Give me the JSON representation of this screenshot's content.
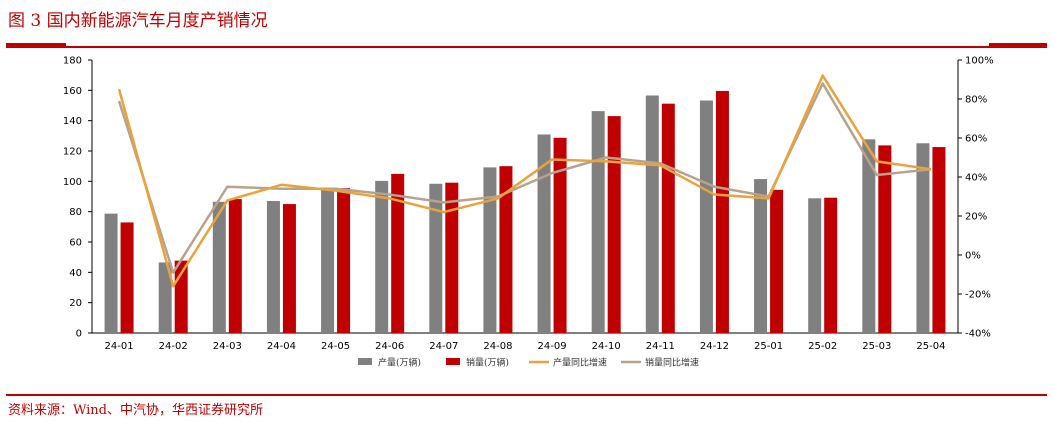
{
  "figure": {
    "title": "图 3  国内新能源汽车月度产销情况",
    "source": "资料来源：Wind、中汽协，华西证券研究所"
  },
  "colors": {
    "production_bar": "#808080",
    "sales_bar": "#c00000",
    "production_yoy_line": "#e8a33c",
    "sales_yoy_line": "#b8a28c",
    "accent": "#c00000"
  },
  "chart_data": {
    "type": "bar",
    "title": "",
    "xlabel": "",
    "ylabel": "",
    "y2label": "",
    "categories": [
      "24-01",
      "24-02",
      "24-03",
      "24-04",
      "24-05",
      "24-06",
      "24-07",
      "24-08",
      "24-09",
      "24-10",
      "24-11",
      "24-12",
      "25-01",
      "25-02",
      "25-03",
      "25-04"
    ],
    "ylim": [
      0,
      180
    ],
    "yticks": [
      0,
      20,
      40,
      60,
      80,
      100,
      120,
      140,
      160,
      180
    ],
    "ytick_labels": [
      "0",
      "20",
      "40",
      "60",
      "80",
      "100",
      "120",
      "140",
      "160",
      "180"
    ],
    "y2lim": [
      -40,
      100
    ],
    "y2ticks": [
      -40,
      -20,
      0,
      20,
      40,
      60,
      80,
      100
    ],
    "y2tick_labels": [
      "-40%",
      "-20%",
      "0%",
      "20%",
      "40%",
      "60%",
      "80%",
      "100%"
    ],
    "grid": false,
    "legend_position": "bottom",
    "series": [
      {
        "name": "产量(万辆)",
        "kind": "bar",
        "axis": "left",
        "color": "#808080",
        "values": [
          78.7,
          46.5,
          86.5,
          87.0,
          94.4,
          100.3,
          98.4,
          109.2,
          130.9,
          146.3,
          156.6,
          153.3,
          101.5,
          88.8,
          127.7,
          125.1
        ]
      },
      {
        "name": "销量(万辆)",
        "kind": "bar",
        "axis": "left",
        "color": "#c00000",
        "values": [
          72.9,
          47.7,
          88.3,
          85.0,
          95.5,
          104.9,
          99.1,
          110.0,
          128.7,
          143.0,
          151.2,
          159.6,
          94.4,
          89.2,
          123.7,
          122.6
        ]
      },
      {
        "name": "产量同比增速",
        "kind": "line",
        "axis": "right",
        "color": "#e8a33c",
        "values": [
          85.0,
          -16.0,
          28.0,
          36.0,
          33.0,
          29.0,
          22.0,
          29.0,
          49.0,
          48.0,
          46.0,
          31.0,
          29.0,
          92.0,
          48.0,
          44.0
        ]
      },
      {
        "name": "销量同比增速",
        "kind": "line",
        "axis": "right",
        "color": "#b8a28c",
        "values": [
          79.0,
          -9.0,
          35.0,
          34.0,
          34.0,
          31.0,
          27.0,
          30.0,
          42.0,
          50.0,
          47.0,
          35.0,
          30.0,
          88.0,
          41.0,
          44.0
        ]
      }
    ]
  }
}
